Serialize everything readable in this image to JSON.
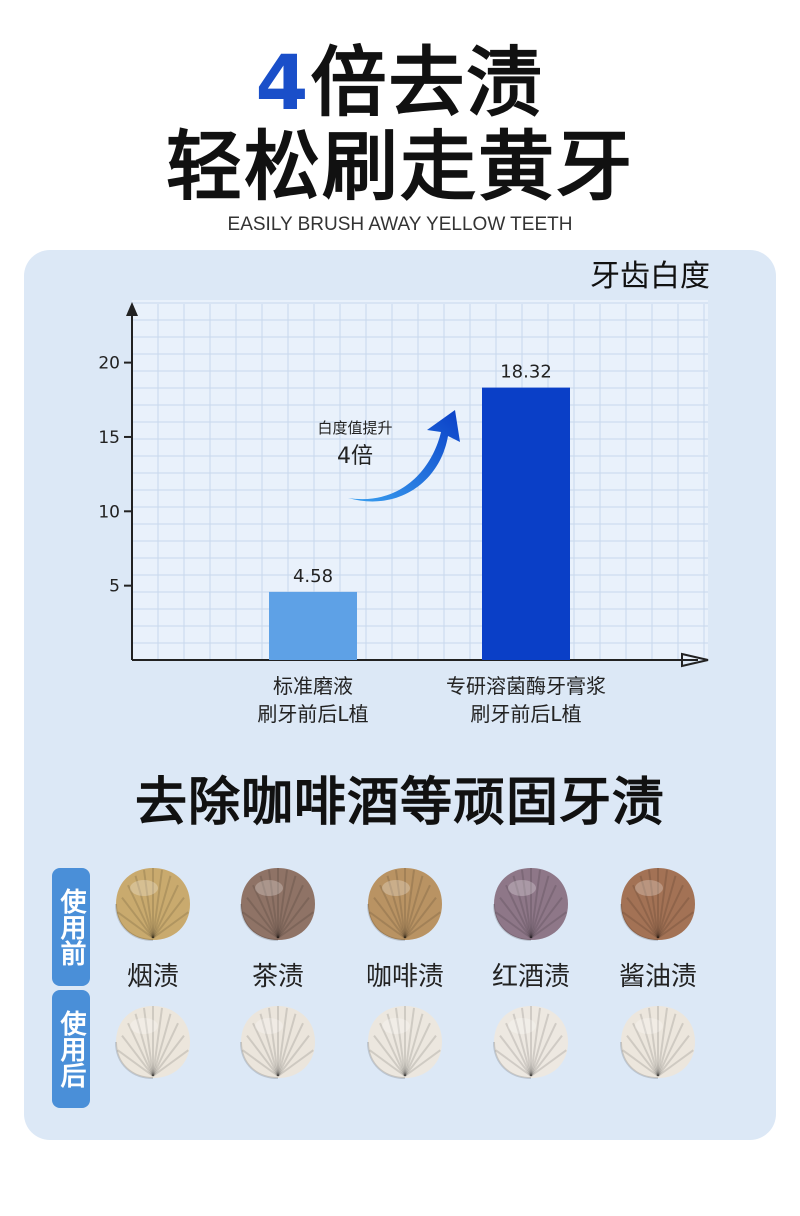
{
  "hero": {
    "line1_accent": "4",
    "line1_rest": "倍去渍",
    "line2": "轻松刷走黄牙",
    "subtitle": "EASILY BRUSH AWAY YELLOW TEETH"
  },
  "chart_data": {
    "type": "bar",
    "title": "牙齿白度",
    "categories": [
      [
        "标准磨液",
        "刷牙前后L植"
      ],
      [
        "专研溶菌酶牙膏浆",
        "刷牙前后L植"
      ]
    ],
    "values": [
      4.58,
      18.32
    ],
    "value_labels": [
      "4.58",
      "18.32"
    ],
    "bar_colors": [
      "#5ea1e6",
      "#0a3fc7"
    ],
    "yticks": [
      5,
      10,
      15,
      20
    ],
    "ylim": [
      0,
      23
    ],
    "grid": true,
    "annotation": {
      "line1": "白度值提升",
      "line2": "4倍"
    }
  },
  "stains": {
    "title": "去除咖啡酒等顽固牙渍",
    "before_tag": "使用前",
    "after_tag": "使用后",
    "items": [
      {
        "label": "烟渍",
        "before_color": "#c9aa6e",
        "after_color": "#ece6dc"
      },
      {
        "label": "茶渍",
        "before_color": "#8f7366",
        "after_color": "#ebe5dc"
      },
      {
        "label": "咖啡渍",
        "before_color": "#b99363",
        "after_color": "#ece7df"
      },
      {
        "label": "红酒渍",
        "before_color": "#8e7788",
        "after_color": "#ede8e1"
      },
      {
        "label": "酱油渍",
        "before_color": "#a37255",
        "after_color": "#ece6dd"
      }
    ]
  }
}
